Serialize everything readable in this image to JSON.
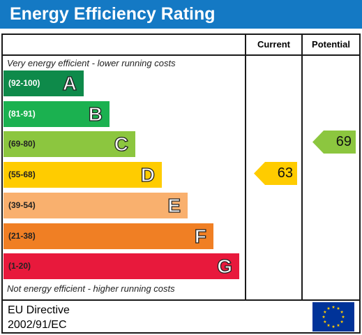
{
  "title": "Energy Efficiency Rating",
  "columns": {
    "current": "Current",
    "potential": "Potential"
  },
  "top_note": "Very energy efficient - lower running costs",
  "bottom_note": "Not energy efficient - higher running costs",
  "footer": {
    "line1": "EU Directive",
    "line2": "2002/91/EC"
  },
  "icons": {
    "flag": "eu-flag-icon"
  },
  "colors": {
    "title_bar": "#1479c4",
    "A": "#0e8a4a",
    "B": "#1bb150",
    "C": "#8cc63f",
    "D": "#ffcc00",
    "E": "#f9b06e",
    "F": "#f07f24",
    "G": "#e8193c"
  },
  "chart_data": {
    "type": "bar",
    "title": "Energy Efficiency Rating",
    "bands": [
      {
        "letter": "A",
        "range": "(92-100)"
      },
      {
        "letter": "B",
        "range": "(81-91)"
      },
      {
        "letter": "C",
        "range": "(69-80)"
      },
      {
        "letter": "D",
        "range": "(55-68)"
      },
      {
        "letter": "E",
        "range": "(39-54)"
      },
      {
        "letter": "F",
        "range": "(21-38)"
      },
      {
        "letter": "G",
        "range": "(1-20)"
      }
    ],
    "current": {
      "value": 63,
      "band": "D"
    },
    "potential": {
      "value": 69,
      "band": "C"
    }
  }
}
